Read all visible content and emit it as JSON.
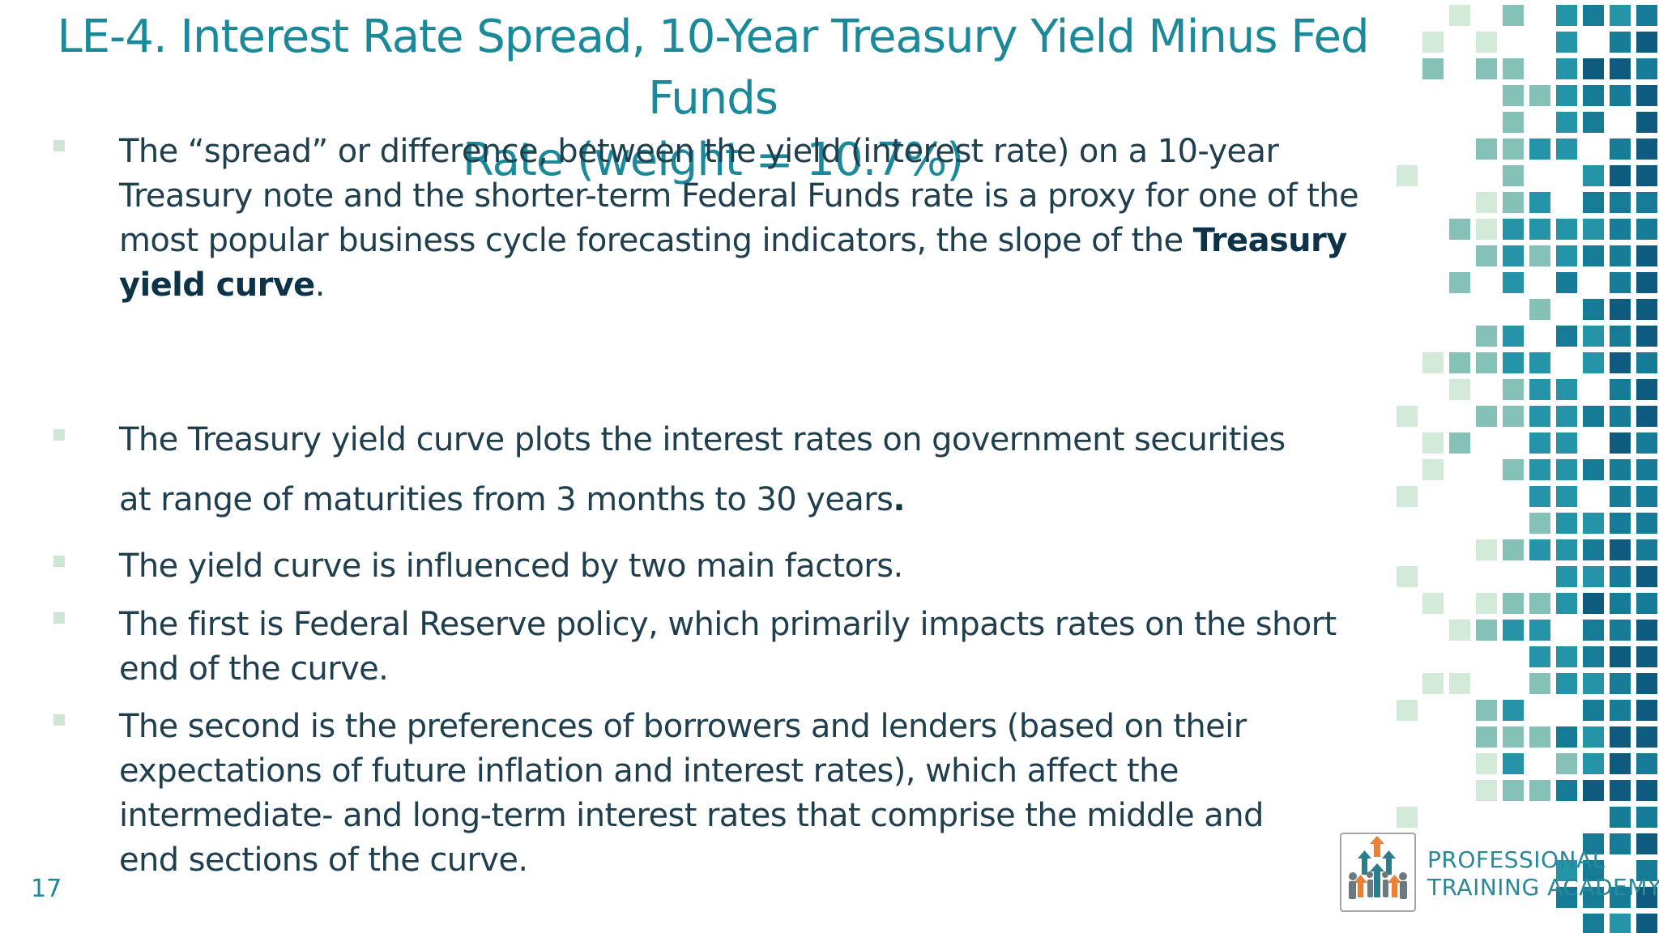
{
  "slide": {
    "title_line1": "LE-4. Interest Rate Spread, 10-Year Treasury Yield Minus Fed Funds",
    "title_line2": "Rate (weight = 10.7%)",
    "page_number": "17"
  },
  "bullets": [
    {
      "text_before": "The “spread” or difference, between the yield (interest rate) on a 10-year Treasury note and the shorter-term Federal Funds rate is a proxy for one of the most popular business cycle forecasting indicators, the slope of the ",
      "bold": "Treasury yield curve",
      "text_after": "."
    },
    {
      "text_before": "The Treasury yield curve plots the interest rates on government securities at range of maturities from 3 months to 30 years",
      "bold": ".",
      "text_after": ""
    },
    {
      "text_before": " The yield curve is influenced by two main factors.",
      "bold": "",
      "text_after": ""
    },
    {
      "text_before": "The first is Federal Reserve policy, which primarily impacts rates on the short end of the curve.",
      "bold": "",
      "text_after": ""
    },
    {
      "text_before": "The second is the preferences of borrowers and lenders (based on their expectations of future inflation and interest rates), which affect the intermediate- and long-term interest rates that comprise the middle and end sections of the curve.",
      "bold": "",
      "text_after": ""
    }
  ],
  "logo": {
    "line1": "PROFESSIONAL",
    "line2": "TRAINING ACADEMY",
    "icon": "arrows-up-people-icon"
  },
  "colors": {
    "title": "#1a8a9a",
    "body_text": "#1f3f4f",
    "mosaic_palette": [
      "#d3ead9",
      "#86c1b8",
      "#2594a8",
      "#157b96",
      "#0f5b80"
    ]
  }
}
